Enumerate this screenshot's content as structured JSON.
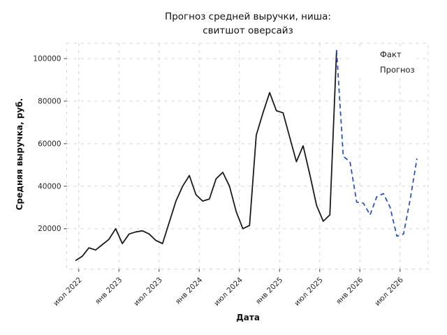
{
  "chart_data": {
    "type": "line",
    "title_lines": [
      "Прогноз средней выручки, ниша:",
      "свитшот оверсайз"
    ],
    "xlabel": "Дата",
    "ylabel": "Средняя выручка, руб.",
    "grid": true,
    "legend_position": "upper right",
    "ylim": [
      1000,
      107000
    ],
    "y_ticks": [
      20000,
      40000,
      60000,
      80000,
      100000
    ],
    "x_ticks": [
      {
        "label": "июл 2022",
        "month": "2022-07"
      },
      {
        "label": "янв 2023",
        "month": "2023-01"
      },
      {
        "label": "июл 2023",
        "month": "2023-07"
      },
      {
        "label": "янв 2024",
        "month": "2024-01"
      },
      {
        "label": "июл 2024",
        "month": "2024-07"
      },
      {
        "label": "янв 2025",
        "month": "2025-01"
      },
      {
        "label": "июл 2025",
        "month": "2025-07"
      },
      {
        "label": "янв 2026",
        "month": "2026-01"
      },
      {
        "label": "июл 2026",
        "month": "2026-07"
      }
    ],
    "series": [
      {
        "name": "Факт",
        "style": "solid",
        "color": "#1a1a1a",
        "start_month": "2022-06",
        "values": [
          5000,
          7000,
          11000,
          10000,
          12500,
          15000,
          20000,
          13000,
          17500,
          18500,
          19000,
          17500,
          14500,
          13000,
          23000,
          33000,
          40000,
          45000,
          36000,
          33000,
          34000,
          43500,
          46500,
          40000,
          28000,
          20000,
          21500,
          64000,
          74500,
          84000,
          75500,
          74500,
          63000,
          51500,
          59000,
          45500,
          31000,
          23500,
          26500,
          104000
        ]
      },
      {
        "name": "Прогноз",
        "style": "dashed",
        "color": "#2c55c4",
        "start_month": "2025-09",
        "values": [
          104000,
          54000,
          51500,
          32500,
          32000,
          26500,
          35000,
          36500,
          30000,
          16500,
          17500,
          34000,
          53000
        ]
      }
    ]
  }
}
